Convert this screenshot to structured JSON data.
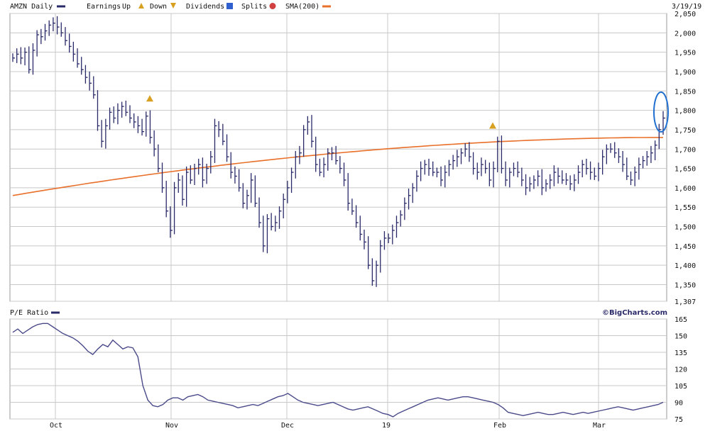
{
  "header": {
    "symbol_label": "AMZN Daily",
    "earnings_label": "Earnings",
    "up_label": "Up",
    "down_label": "Down",
    "dividends_label": "Dividends",
    "splits_label": "Splits",
    "sma_label": "SMA(200)",
    "date_label": "3/19/19"
  },
  "lower": {
    "title": "P/E Ratio"
  },
  "brand": "©BigCharts.com",
  "colors": {
    "price_bars": "#2a2a6a",
    "sma": "#e8702a",
    "pe_line": "#4a4a8a",
    "grid": "#c8c8c8",
    "highlight": "#1f6fd1",
    "earnings_marker": "#d8a020"
  },
  "chart_data": [
    {
      "type": "bar",
      "title": "AMZN Daily",
      "series": [
        {
          "name": "AMZN Daily",
          "values": [
            1935,
            1945,
            1935,
            1950,
            1905,
            1955,
            1995,
            1990,
            2005,
            2020,
            2025,
            2015,
            2000,
            1980,
            1965,
            1945,
            1920,
            1905,
            1885,
            1870,
            1840,
            1760,
            1720,
            1760,
            1795,
            1780,
            1800,
            1810,
            1795,
            1780,
            1770,
            1760,
            1745,
            1785,
            1730,
            1700,
            1650,
            1600,
            1540,
            1490,
            1600,
            1620,
            1570,
            1640,
            1620,
            1650,
            1660,
            1620,
            1650,
            1680,
            1760,
            1750,
            1720,
            1680,
            1640,
            1630,
            1600,
            1560,
            1580,
            1620,
            1560,
            1510,
            1450,
            1520,
            1500,
            1510,
            1540,
            1570,
            1600,
            1640,
            1680,
            1690,
            1750,
            1770,
            1720,
            1660,
            1640,
            1660,
            1690,
            1690,
            1670,
            1650,
            1620,
            1560,
            1540,
            1510,
            1480,
            1460,
            1400,
            1360,
            1400,
            1450,
            1470,
            1470,
            1490,
            1510,
            1530,
            1560,
            1580,
            1600,
            1630,
            1650,
            1660,
            1650,
            1640,
            1640,
            1620,
            1640,
            1660,
            1670,
            1680,
            1690,
            1700,
            1680,
            1650,
            1640,
            1660,
            1650,
            1620,
            1650,
            1720,
            1650,
            1620,
            1640,
            1650,
            1640,
            1620,
            1600,
            1610,
            1620,
            1630,
            1600,
            1610,
            1620,
            1640,
            1630,
            1620,
            1620,
            1610,
            1620,
            1640,
            1660,
            1650,
            1640,
            1630,
            1650,
            1680,
            1700,
            1700,
            1690,
            1680,
            1660,
            1630,
            1620,
            1640,
            1660,
            1670,
            1680,
            1690,
            1710,
            1750,
            1780
          ]
        }
      ],
      "sma_200": {
        "name": "SMA(200)",
        "start": 1580,
        "end": 1730
      },
      "earnings_markers": [
        {
          "date": "Oct 25",
          "value": 1830,
          "direction": "up"
        },
        {
          "date": "Jan 31",
          "value": 1760,
          "direction": "up"
        }
      ],
      "x_ticks": [
        "Oct",
        "Nov",
        "Dec",
        "19",
        "Feb",
        "Mar"
      ],
      "y_ticks": [
        2050,
        2000,
        1950,
        1900,
        1850,
        1800,
        1750,
        1700,
        1650,
        1600,
        1550,
        1500,
        1450,
        1400,
        1350,
        1307
      ],
      "ylim": [
        1307,
        2050
      ],
      "grid": true,
      "highlight": {
        "description": "last bars circled",
        "value_range": [
          1710,
          1790
        ]
      }
    },
    {
      "type": "line",
      "title": "P/E Ratio",
      "series": [
        {
          "name": "P/E Ratio",
          "values": [
            153,
            156,
            152,
            155,
            158,
            160,
            161,
            161,
            158,
            155,
            152,
            150,
            148,
            145,
            141,
            136,
            133,
            138,
            142,
            140,
            146,
            142,
            138,
            140,
            139,
            131,
            105,
            92,
            87,
            86,
            88,
            92,
            94,
            94,
            92,
            95,
            96,
            97,
            95,
            92,
            91,
            90,
            89,
            88,
            87,
            85,
            86,
            87,
            88,
            87,
            89,
            91,
            93,
            95,
            96,
            98,
            95,
            92,
            90,
            89,
            88,
            87,
            88,
            89,
            90,
            88,
            86,
            84,
            83,
            84,
            85,
            86,
            84,
            82,
            80,
            79,
            77,
            80,
            82,
            84,
            86,
            88,
            90,
            92,
            93,
            94,
            93,
            92,
            93,
            94,
            95,
            95,
            94,
            93,
            92,
            91,
            90,
            88,
            85,
            81,
            80,
            79,
            78,
            79,
            80,
            81,
            80,
            79,
            79,
            80,
            81,
            80,
            79,
            80,
            81,
            80,
            81,
            82,
            83,
            84,
            85,
            86,
            85,
            84,
            83,
            84,
            85,
            86,
            87,
            88,
            90
          ]
        }
      ],
      "x_ticks": [
        "Oct",
        "Nov",
        "Dec",
        "19",
        "Feb",
        "Mar"
      ],
      "y_ticks": [
        165,
        150,
        135,
        120,
        105,
        90,
        75
      ],
      "ylim": [
        75,
        165
      ],
      "grid": true
    }
  ]
}
